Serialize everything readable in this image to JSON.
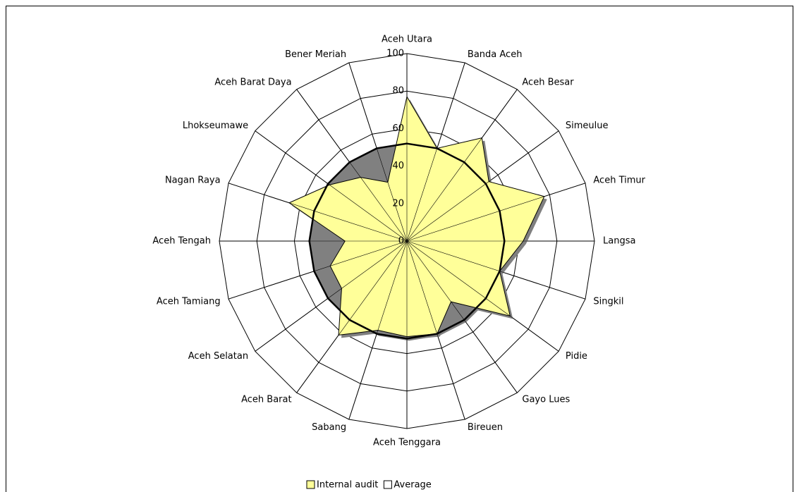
{
  "chart_data": {
    "type": "radar",
    "categories": [
      "Aceh Utara",
      "Banda Aceh",
      "Aceh Besar",
      "Simeulue",
      "Aceh Timur",
      "Langsa",
      "Singkil",
      "Pidie",
      "Gayo Lues",
      "Bireuen",
      "Aceh Tenggara",
      "Sabang",
      "Aceh Barat",
      "Aceh Selatan",
      "Aceh Tamiang",
      "Aceh Tengah",
      "Nagan Raya",
      "Lhokseumawe",
      "Aceh Barat Daya",
      "Bener Meriah"
    ],
    "series": [
      {
        "name": "Internal audit",
        "color": "#ffff99",
        "values": [
          77,
          52,
          68,
          54,
          77,
          62,
          52,
          68,
          40,
          52,
          51,
          50,
          62,
          43,
          43,
          33,
          66,
          51,
          42,
          33
        ]
      },
      {
        "name": "Average",
        "color": "#ffffff",
        "values": [
          52,
          52,
          52,
          52,
          52,
          52,
          52,
          52,
          52,
          52,
          52,
          52,
          52,
          52,
          52,
          52,
          52,
          52,
          52,
          52
        ]
      }
    ],
    "ylim": [
      0,
      100
    ],
    "yticks": [
      0,
      20,
      40,
      60,
      80,
      100
    ],
    "grid": true,
    "legend": "bottom"
  }
}
